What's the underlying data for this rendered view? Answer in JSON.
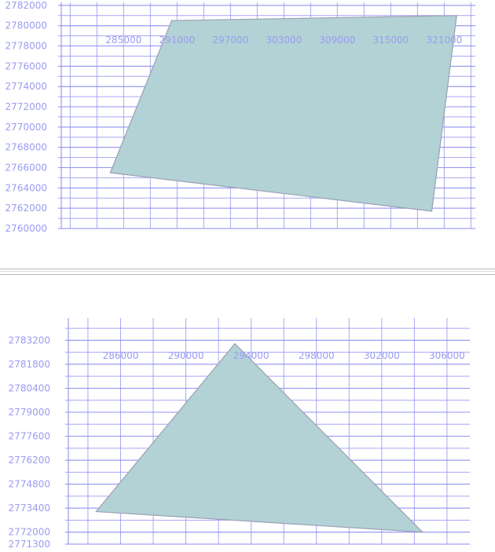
{
  "colors": {
    "grid": "#8a8af0",
    "tick_text": "#9b9bf2",
    "polygon_fill": "#b2d2d5",
    "polygon_stroke": "#9aa0b4",
    "background": "#ffffff"
  },
  "chart_data": [
    {
      "type": "area",
      "title": "",
      "xlabel": "",
      "ylabel": "",
      "grid": true,
      "xlim": [
        278000,
        324500
      ],
      "ylim": [
        2760000,
        2782300
      ],
      "x_tick_labels": [
        "285000",
        "291000",
        "297000",
        "303000",
        "309000",
        "315000",
        "321000"
      ],
      "y_tick_labels": [
        "2782000",
        "2780000",
        "2778000",
        "2776000",
        "2774000",
        "2772000",
        "2770000",
        "2768000",
        "2766000",
        "2764000",
        "2762000",
        "2760000"
      ],
      "polygon": [
        {
          "x": 290400,
          "y": 2780500
        },
        {
          "x": 322400,
          "y": 2781000
        },
        {
          "x": 319600,
          "y": 2761700
        },
        {
          "x": 283500,
          "y": 2765500
        }
      ]
    },
    {
      "type": "area",
      "title": "",
      "xlabel": "",
      "ylabel": "",
      "grid": true,
      "xlim": [
        282800,
        307400
      ],
      "ylim": [
        2771300,
        2784500
      ],
      "x_tick_labels": [
        "286000",
        "290000",
        "294000",
        "298000",
        "302000",
        "306000"
      ],
      "y_tick_labels": [
        "2783200",
        "2781800",
        "2780400",
        "2779000",
        "2777600",
        "2776200",
        "2774800",
        "2773400",
        "2772000",
        "2771300"
      ],
      "polygon": [
        {
          "x": 293000,
          "y": 2783000
        },
        {
          "x": 304500,
          "y": 2772000
        },
        {
          "x": 284500,
          "y": 2773200
        }
      ]
    }
  ]
}
